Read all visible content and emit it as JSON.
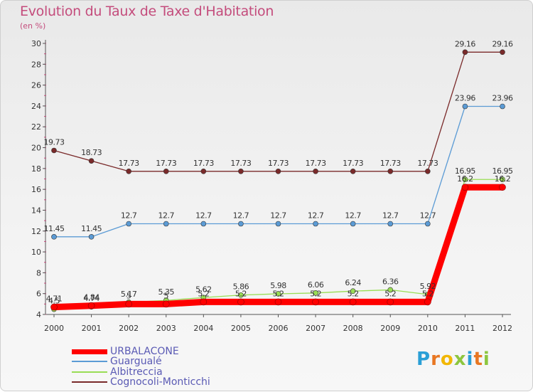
{
  "chart_data": {
    "type": "line",
    "title": "Evolution du Taux de Taxe d'Habitation",
    "subtitle": "(en %)",
    "x": [
      "2000",
      "2001",
      "2002",
      "2003",
      "2004",
      "2005",
      "2006",
      "2007",
      "2008",
      "2009",
      "2010",
      "2011",
      "2012"
    ],
    "ylim": [
      4,
      30
    ],
    "yticks": [
      4,
      6,
      8,
      10,
      12,
      14,
      16,
      18,
      20,
      22,
      24,
      26,
      28,
      30
    ],
    "grid": false,
    "legend_position": "bottom-left",
    "series": [
      {
        "name": "URBALACONE",
        "color": "#ff0000",
        "values": [
          4.71,
          4.84,
          5.0,
          5.0,
          5.2,
          5.2,
          5.2,
          5.2,
          5.2,
          5.2,
          5.2,
          16.2,
          16.2
        ],
        "labels": [
          "4.71",
          "4.84",
          "5",
          "5",
          "5.2",
          "5.2",
          "5.2",
          "5.2",
          "5.2",
          "5.2",
          "5.2",
          "16.2",
          "16.2"
        ]
      },
      {
        "name": "Guargualé",
        "color": "#5b9bd5",
        "values": [
          11.45,
          11.45,
          12.7,
          12.7,
          12.7,
          12.7,
          12.7,
          12.7,
          12.7,
          12.7,
          12.7,
          23.96,
          23.96
        ],
        "labels": [
          "11.45",
          "11.45",
          "12.7",
          "12.7",
          "12.7",
          "12.7",
          "12.7",
          "12.7",
          "12.7",
          "12.7",
          "12.7",
          "23.96",
          "23.96"
        ]
      },
      {
        "name": "Albitreccia",
        "color": "#99dd55",
        "values": [
          4.5,
          4.74,
          5.17,
          5.35,
          5.62,
          5.86,
          5.98,
          6.06,
          6.24,
          6.36,
          5.92,
          16.95,
          16.95
        ],
        "labels": [
          "4.5",
          "4.74",
          "5.17",
          "5.35",
          "5.62",
          "5.86",
          "5.98",
          "6.06",
          "6.24",
          "6.36",
          "5.92",
          "16.95",
          "16.95"
        ]
      },
      {
        "name": "Cognocoli-Monticchi",
        "color": "#7a2a2a",
        "values": [
          19.73,
          18.73,
          17.73,
          17.73,
          17.73,
          17.73,
          17.73,
          17.73,
          17.73,
          17.73,
          17.73,
          29.16,
          29.16
        ],
        "labels": [
          "19.73",
          "18.73",
          "17.73",
          "17.73",
          "17.73",
          "17.73",
          "17.73",
          "17.73",
          "17.73",
          "17.73",
          "17.73",
          "29.16",
          "29.16"
        ]
      }
    ]
  },
  "brand": {
    "letters": [
      "P",
      "r",
      "o",
      "x",
      "i",
      "t",
      "i"
    ],
    "colors": [
      "#2a9fd6",
      "#e87722",
      "#f2b705",
      "#8dc63f",
      "#2a9fd6",
      "#e87722",
      "#8dc63f"
    ]
  }
}
